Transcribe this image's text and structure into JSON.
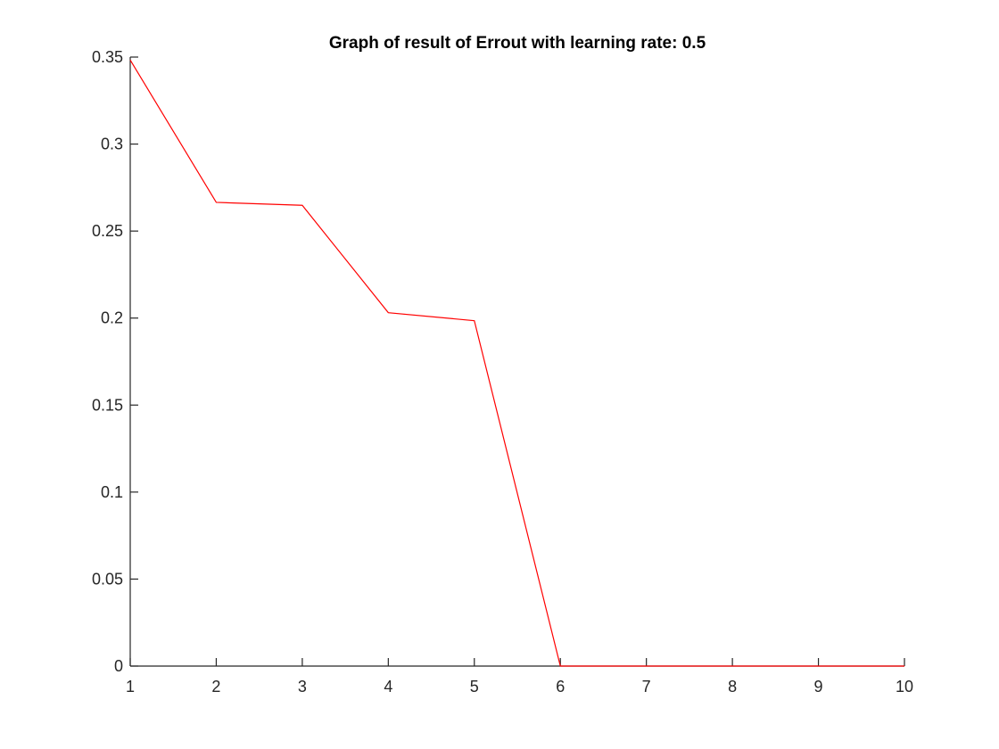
{
  "chart_data": {
    "type": "line",
    "title": "Graph of result of Errout with learning rate: 0.5",
    "xlabel": "",
    "ylabel": "",
    "x": [
      1,
      2,
      3,
      4,
      5,
      6,
      7,
      8,
      9,
      10
    ],
    "series": [
      {
        "values": [
          0.3483,
          0.2665,
          0.2648,
          0.2031,
          0.1985,
          0,
          0,
          0,
          0,
          0
        ]
      }
    ],
    "xlim": [
      1,
      10
    ],
    "ylim": [
      0,
      0.35
    ],
    "xticks": [
      "1",
      "2",
      "3",
      "4",
      "5",
      "6",
      "7",
      "8",
      "9",
      "10"
    ],
    "yticks": [
      "0",
      "0.05",
      "0.1",
      "0.15",
      "0.2",
      "0.25",
      "0.3",
      "0.35"
    ],
    "line_color": "#ff0000",
    "axis_color": "#262626",
    "grid": false,
    "legend": "none"
  }
}
